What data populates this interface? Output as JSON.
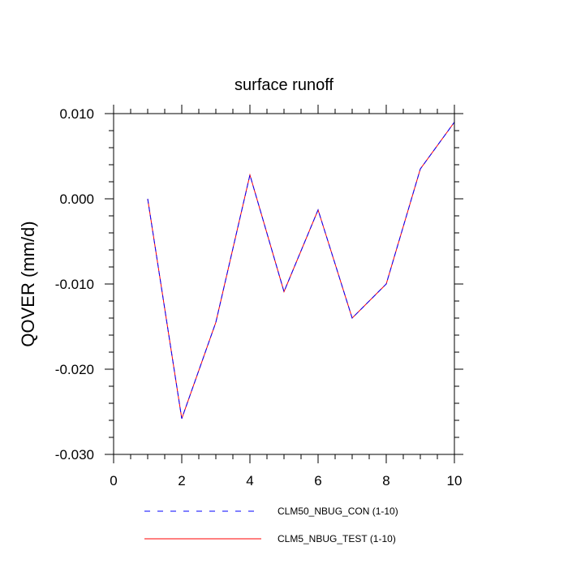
{
  "chart_data": {
    "type": "line",
    "title": "surface runoff",
    "xlabel": "",
    "ylabel": "QOVER  (mm/d)",
    "xlim": [
      0,
      10
    ],
    "ylim": [
      -0.03,
      0.01
    ],
    "x_ticks": [
      0,
      2,
      4,
      6,
      8,
      10
    ],
    "x_tick_labels": [
      "0",
      "2",
      "4",
      "6",
      "8",
      "10"
    ],
    "y_ticks": [
      -0.03,
      -0.02,
      -0.01,
      0.0,
      0.01
    ],
    "y_tick_labels": [
      "-0.030",
      "-0.020",
      "-0.010",
      "0.000",
      "0.010"
    ],
    "x_minor_step": 0.5,
    "y_minor_step": 0.002,
    "grid": false,
    "legend_position": "bottom-center",
    "x": [
      1,
      2,
      3,
      4,
      5,
      6,
      7,
      8,
      9,
      10
    ],
    "series": [
      {
        "name": "CLM50_NBUG_CON (1-10)",
        "color": "#0000ff",
        "style": "dashed",
        "values": [
          0.0,
          -0.0258,
          -0.0145,
          0.0028,
          -0.0109,
          -0.0013,
          -0.014,
          -0.01,
          0.0035,
          0.009
        ]
      },
      {
        "name": "CLM5_NBUG_TEST (1-10)",
        "color": "#ff0000",
        "style": "solid",
        "values": [
          0.0,
          -0.0258,
          -0.0145,
          0.0028,
          -0.0109,
          -0.0013,
          -0.014,
          -0.01,
          0.0035,
          0.009
        ]
      }
    ]
  }
}
